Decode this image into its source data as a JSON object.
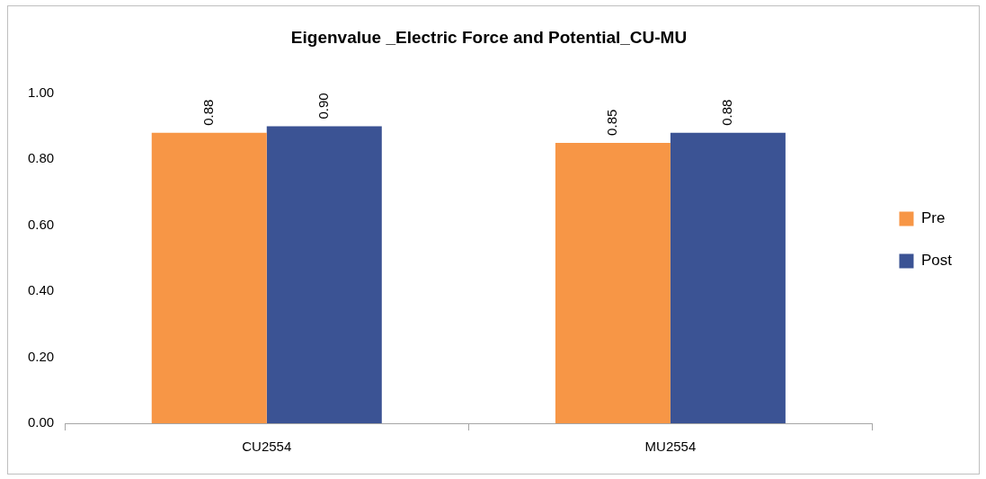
{
  "chart_data": {
    "type": "bar",
    "title": "Eigenvalue _Electric Force and Potential_CU-MU",
    "categories": [
      "CU2554",
      "MU2554"
    ],
    "series": [
      {
        "name": "Pre",
        "color": "#f79646",
        "values": [
          0.88,
          0.85
        ],
        "value_labels": [
          "0.88",
          "0.85"
        ]
      },
      {
        "name": "Post",
        "color": "#3b5394",
        "values": [
          0.9,
          0.88
        ],
        "value_labels": [
          "0.90",
          "0.88"
        ]
      }
    ],
    "ylim": [
      0,
      1
    ],
    "yticks": [
      {
        "value": 0,
        "label": "0.00"
      },
      {
        "value": 0.2,
        "label": "0.20"
      },
      {
        "value": 0.4,
        "label": "0.40"
      },
      {
        "value": 0.6,
        "label": "0.60"
      },
      {
        "value": 0.8,
        "label": "0.80"
      },
      {
        "value": 1,
        "label": "1.00"
      }
    ],
    "grid": false,
    "legend": "right"
  }
}
